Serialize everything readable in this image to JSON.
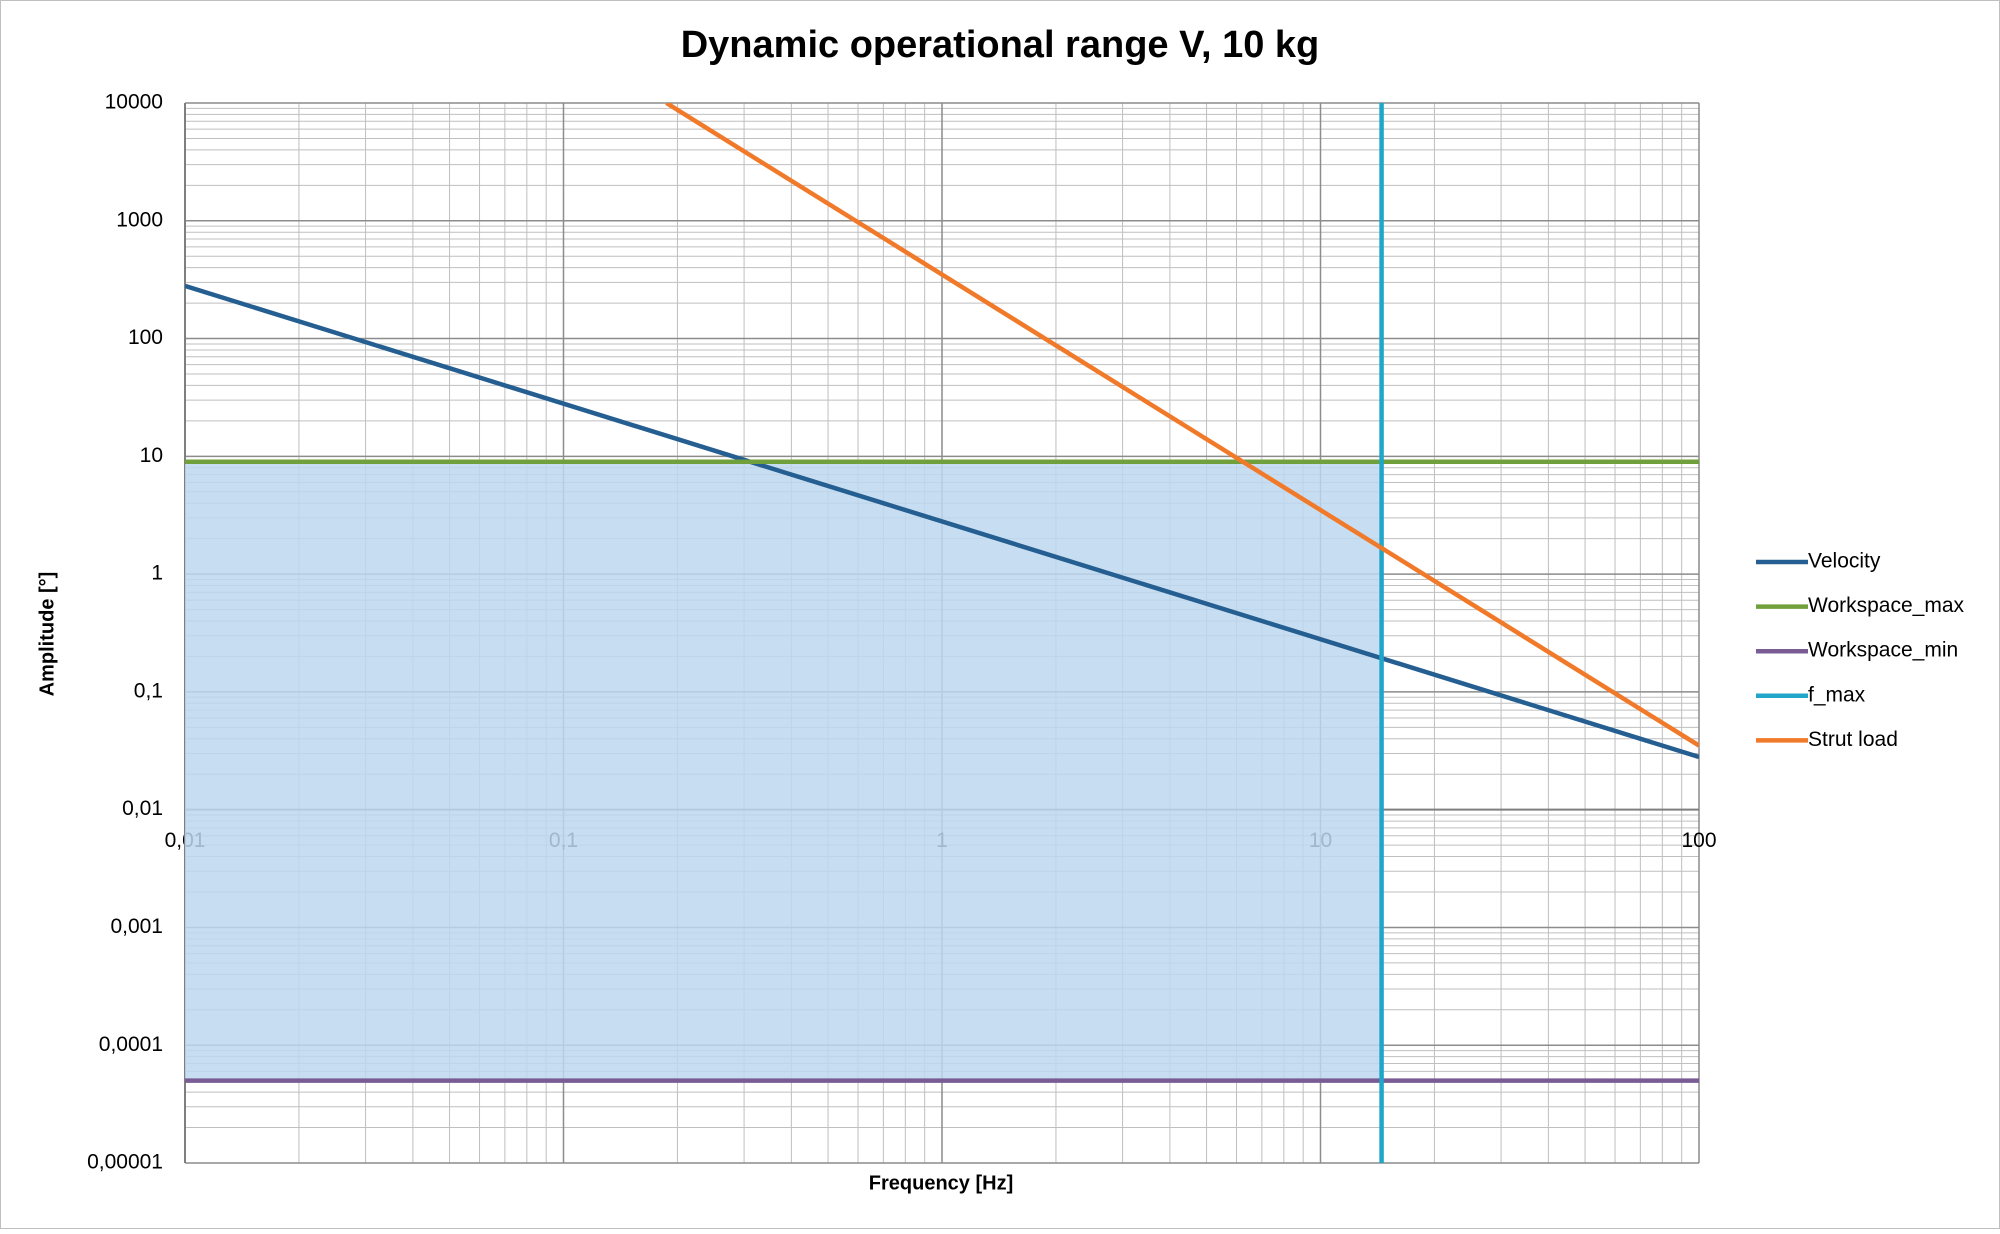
{
  "chart_data": {
    "type": "line",
    "title": "Dynamic operational range V, 10 kg",
    "x_label": "Frequency [Hz]",
    "y_label": "Amplitude [°]",
    "log_x": true,
    "log_y": true,
    "grid": true,
    "minor_grid": true,
    "legend": "right",
    "fill_color": "#bdd7ee",
    "xlim": [
      0.01,
      100
    ],
    "ylim": [
      1e-05,
      10000
    ],
    "xticks": [
      {
        "value": 0.01,
        "label": "0,01"
      },
      {
        "value": 0.1,
        "label": "0,1"
      },
      1,
      10,
      100
    ],
    "yticks": [
      {
        "value": 1e-05,
        "label": "0,00001"
      },
      {
        "value": 0.0001,
        "label": "0,0001"
      },
      {
        "value": 0.001,
        "label": "0,001"
      },
      {
        "value": 0.01,
        "label": "0,01"
      },
      {
        "value": 0.1,
        "label": "0,1"
      },
      1,
      10,
      100,
      1000,
      10000
    ],
    "series": [
      {
        "name": "Velocity",
        "color": "#255e91",
        "x": [
          0.01,
          100
        ],
        "values": [
          280,
          0.028
        ]
      },
      {
        "name": "Workspace_max",
        "color": "#70a03c",
        "x": [
          0.01,
          100
        ],
        "values": [
          9,
          9
        ]
      },
      {
        "name": "Workspace_min",
        "color": "#7a5c94",
        "x": [
          0.01,
          100
        ],
        "values": [
          5e-05,
          5e-05
        ]
      },
      {
        "name": "f_max",
        "color": "#1fa6c9",
        "x": [
          14.5,
          14.5
        ],
        "values": [
          1e-05,
          10000
        ]
      },
      {
        "name": "Strut load",
        "color": "#f07a2a",
        "x": [
          0.187,
          100
        ],
        "values": [
          10000,
          0.035
        ]
      }
    ]
  }
}
